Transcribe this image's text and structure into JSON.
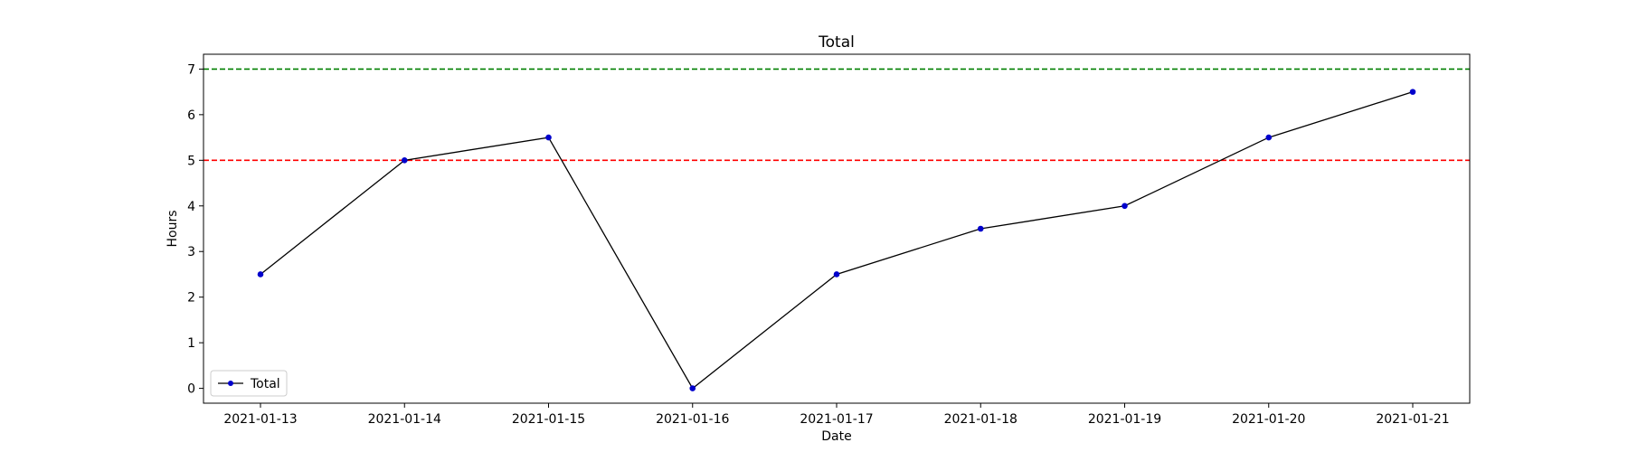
{
  "chart_data": {
    "type": "line",
    "title": "Total",
    "xlabel": "Date",
    "ylabel": "Hours",
    "x": [
      "2021-01-13",
      "2021-01-14",
      "2021-01-15",
      "2021-01-16",
      "2021-01-17",
      "2021-01-18",
      "2021-01-19",
      "2021-01-20",
      "2021-01-21"
    ],
    "series": [
      {
        "name": "Total",
        "values": [
          2.5,
          5,
          5.5,
          0,
          2.5,
          3.5,
          4,
          5.5,
          6.5
        ],
        "line_color": "#000000",
        "marker_color": "#0000cc"
      }
    ],
    "reference_lines": [
      {
        "value": 7,
        "color": "#008000",
        "style": "dashed"
      },
      {
        "value": 5,
        "color": "#ff0000",
        "style": "dashed"
      }
    ],
    "yticks": [
      0,
      1,
      2,
      3,
      4,
      5,
      6,
      7
    ],
    "ylim": [
      -0.325,
      7.325
    ],
    "grid": false,
    "legend_position": "lower-left"
  }
}
